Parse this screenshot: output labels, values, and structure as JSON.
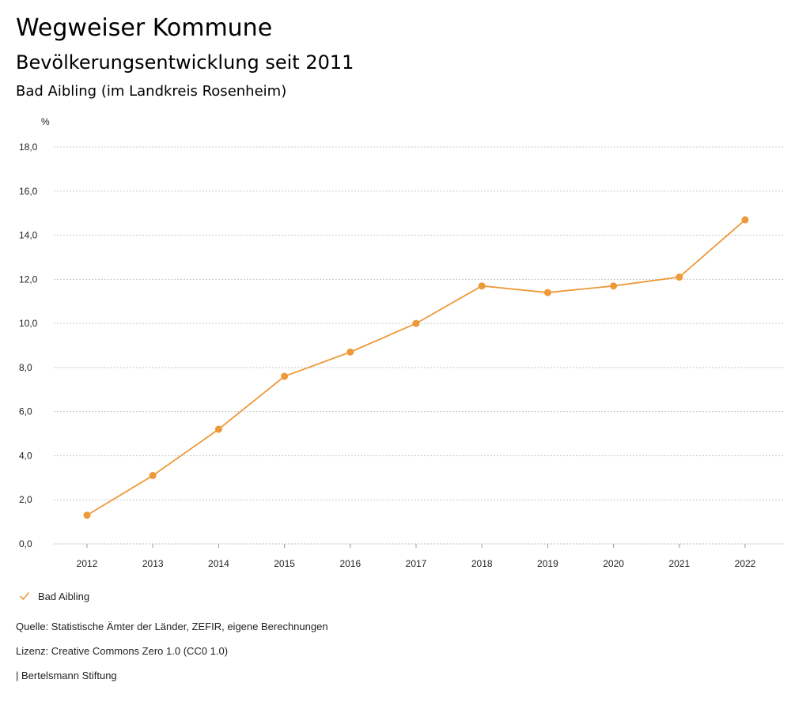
{
  "header": {
    "title": "Wegweiser Kommune",
    "subtitle": "Bevölkerungsentwicklung seit 2011",
    "region": "Bad Aibling (im Landkreis Rosenheim)"
  },
  "chart_data": {
    "type": "line",
    "unit": "%",
    "x": [
      "2012",
      "2013",
      "2014",
      "2015",
      "2016",
      "2017",
      "2018",
      "2019",
      "2020",
      "2021",
      "2022"
    ],
    "series": [
      {
        "name": "Bad Aibling",
        "color": "#EE9938",
        "values": [
          1.3,
          3.1,
          5.2,
          7.6,
          8.7,
          10.0,
          11.7,
          11.4,
          11.7,
          12.1,
          14.7
        ]
      }
    ],
    "ylim": [
      0,
      18
    ],
    "yticks": [
      "0,0",
      "2,0",
      "4,0",
      "6,0",
      "8,0",
      "10,0",
      "12,0",
      "14,0",
      "16,0",
      "18,0"
    ],
    "grid": true,
    "legend_position": "bottom-left"
  },
  "legend": {
    "label": "Bad Aibling",
    "icon": "check-icon",
    "color": "#EE9938"
  },
  "footer": {
    "source": "Quelle: Statistische Ämter der Länder, ZEFIR, eigene Berechnungen",
    "license": "Lizenz: Creative Commons Zero 1.0 (CC0 1.0)",
    "publisher": "| Bertelsmann Stiftung"
  }
}
